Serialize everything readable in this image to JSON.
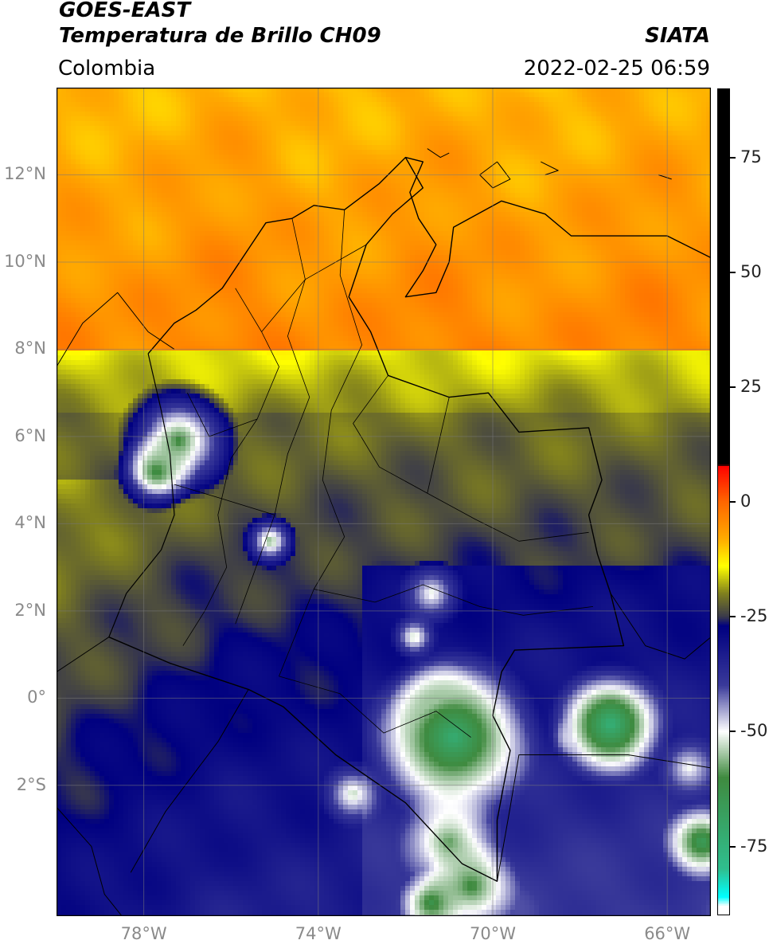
{
  "header": {
    "title_line1": "GOES-EAST",
    "title_line2": "Temperatura de Brillo CH09",
    "brand": "SIATA",
    "region": "Colombia",
    "timestamp": "2022-02-25 06:59"
  },
  "map": {
    "projection": "PlateCarree",
    "lon_range": [
      -80.0,
      -65.0
    ],
    "lat_range": [
      -5.0,
      14.0
    ],
    "gridlines": true,
    "lat_ticks": [
      {
        "value": 12,
        "label": "12°N"
      },
      {
        "value": 10,
        "label": "10°N"
      },
      {
        "value": 8,
        "label": "8°N"
      },
      {
        "value": 6,
        "label": "6°N"
      },
      {
        "value": 4,
        "label": "4°N"
      },
      {
        "value": 2,
        "label": "2°N"
      },
      {
        "value": 0,
        "label": "0°"
      },
      {
        "value": -2,
        "label": "2°S"
      }
    ],
    "lon_ticks": [
      {
        "value": -78,
        "label": "78°W"
      },
      {
        "value": -74,
        "label": "74°W"
      },
      {
        "value": -70,
        "label": "70°W"
      },
      {
        "value": -66,
        "label": "66°W"
      }
    ]
  },
  "colorbar": {
    "range": [
      -90,
      90
    ],
    "ticks": [
      {
        "value": 75,
        "label": "75"
      },
      {
        "value": 50,
        "label": "50"
      },
      {
        "value": 25,
        "label": "25"
      },
      {
        "value": 0,
        "label": "0"
      },
      {
        "value": -25,
        "label": "-25"
      },
      {
        "value": -50,
        "label": "-50"
      },
      {
        "value": -75,
        "label": "-75"
      }
    ],
    "stops": [
      {
        "value": 90,
        "color": "#000000"
      },
      {
        "value": 8,
        "color": "#000000"
      },
      {
        "value": 7.9,
        "color": "#ff0000"
      },
      {
        "value": 0,
        "color": "#ff6600"
      },
      {
        "value": -8,
        "color": "#ffaa00"
      },
      {
        "value": -14,
        "color": "#ffff00"
      },
      {
        "value": -20,
        "color": "#7f7f1e"
      },
      {
        "value": -25,
        "color": "#3a3a4a"
      },
      {
        "value": -27,
        "color": "#000080"
      },
      {
        "value": -40,
        "color": "#3a3a9a"
      },
      {
        "value": -50,
        "color": "#ffffff"
      },
      {
        "value": -60,
        "color": "#3f8a3f"
      },
      {
        "value": -80,
        "color": "#2fbf8f"
      },
      {
        "value": -86,
        "color": "#00ffff"
      },
      {
        "value": -88,
        "color": "#ffffff"
      },
      {
        "value": -90,
        "color": "#ffffff"
      }
    ]
  },
  "clouds": [
    {
      "lon": -77.2,
      "lat": 5.9,
      "r": 0.9,
      "tb": -55
    },
    {
      "lon": -77.7,
      "lat": 5.2,
      "r": 0.6,
      "tb": -58
    },
    {
      "lon": -75.1,
      "lat": 3.6,
      "r": 0.4,
      "tb": -52
    },
    {
      "lon": -71.4,
      "lat": 2.4,
      "r": 0.5,
      "tb": -48
    },
    {
      "lon": -71.8,
      "lat": 1.4,
      "r": 0.35,
      "tb": -50
    },
    {
      "lon": -70.9,
      "lat": -0.9,
      "r": 1.3,
      "tb": -66
    },
    {
      "lon": -71.3,
      "lat": -0.2,
      "r": 0.7,
      "tb": -55
    },
    {
      "lon": -67.3,
      "lat": -0.6,
      "r": 0.9,
      "tb": -68
    },
    {
      "lon": -68.2,
      "lat": -0.9,
      "r": 0.3,
      "tb": -48
    },
    {
      "lon": -73.2,
      "lat": -2.2,
      "r": 0.5,
      "tb": -50
    },
    {
      "lon": -71.0,
      "lat": -3.3,
      "r": 0.8,
      "tb": -55
    },
    {
      "lon": -70.5,
      "lat": -4.3,
      "r": 0.7,
      "tb": -58
    },
    {
      "lon": -71.4,
      "lat": -4.7,
      "r": 0.5,
      "tb": -60
    },
    {
      "lon": -65.2,
      "lat": -3.3,
      "r": 0.6,
      "tb": -62
    },
    {
      "lon": -65.5,
      "lat": -1.6,
      "r": 0.5,
      "tb": -48
    }
  ]
}
